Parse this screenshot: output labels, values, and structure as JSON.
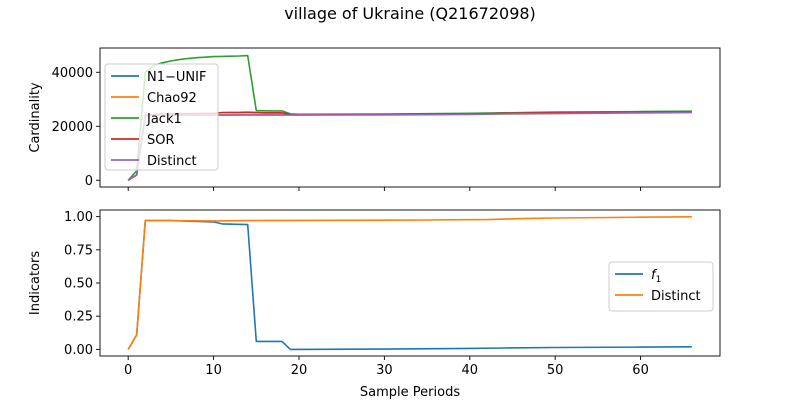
{
  "figure": {
    "title": "village of Ukraine (Q21672098)"
  },
  "chart_data": [
    {
      "type": "line",
      "panel": "top",
      "title": "village of Ukraine (Q21672098)",
      "xlabel": "",
      "ylabel": "Cardinality",
      "xlim": [
        -3.3,
        69.3
      ],
      "ylim": [
        -2500,
        49000
      ],
      "xticks": [
        0,
        10,
        20,
        30,
        40,
        50,
        60
      ],
      "yticks": [
        0,
        20000,
        40000
      ],
      "ytick_labels": [
        "0",
        "20000",
        "40000"
      ],
      "show_xtick_labels": false,
      "legend": "upper-left",
      "series": [
        {
          "name": "N1−UNIF",
          "color": "#1f77b4",
          "points": [
            [
              0,
              0
            ],
            [
              1,
              2000
            ],
            [
              2,
              24000
            ],
            [
              3,
              24150
            ],
            [
              5,
              24200
            ],
            [
              10,
              24250
            ],
            [
              14,
              24300
            ],
            [
              18,
              24300
            ],
            [
              19,
              24250
            ],
            [
              30,
              24350
            ],
            [
              40,
              24500
            ],
            [
              44,
              24800
            ],
            [
              50,
              25000
            ],
            [
              60,
              25150
            ],
            [
              66,
              25250
            ]
          ]
        },
        {
          "name": "Chao92",
          "color": "#ff7f0e",
          "points": [
            [
              0,
              0
            ],
            [
              1,
              2000
            ],
            [
              2,
              24000
            ],
            [
              3,
              24150
            ],
            [
              5,
              24250
            ],
            [
              10,
              24300
            ],
            [
              14,
              24350
            ],
            [
              18,
              24350
            ],
            [
              19,
              24300
            ],
            [
              30,
              24400
            ],
            [
              40,
              24600
            ],
            [
              44,
              24900
            ],
            [
              50,
              25100
            ],
            [
              60,
              25300
            ],
            [
              66,
              25450
            ]
          ]
        },
        {
          "name": "Jack1",
          "color": "#2ca02c",
          "points": [
            [
              0,
              0
            ],
            [
              1,
              3500
            ],
            [
              2,
              40000
            ],
            [
              3,
              42500
            ],
            [
              4,
              43500
            ],
            [
              5,
              44200
            ],
            [
              6,
              44700
            ],
            [
              7,
              45100
            ],
            [
              8,
              45400
            ],
            [
              9,
              45600
            ],
            [
              10,
              45800
            ],
            [
              11,
              45900
            ],
            [
              12,
              45950
            ],
            [
              13,
              46050
            ],
            [
              14,
              46200
            ],
            [
              15,
              25800
            ],
            [
              16,
              25750
            ],
            [
              17,
              25700
            ],
            [
              18,
              25700
            ],
            [
              19,
              24600
            ],
            [
              20,
              24450
            ],
            [
              30,
              24550
            ],
            [
              40,
              24800
            ],
            [
              44,
              25000
            ],
            [
              50,
              25250
            ],
            [
              60,
              25450
            ],
            [
              66,
              25600
            ]
          ]
        },
        {
          "name": "SOR",
          "color": "#d62728",
          "points": [
            [
              0,
              0
            ],
            [
              1,
              2000
            ],
            [
              2,
              24200
            ],
            [
              3,
              24400
            ],
            [
              5,
              24600
            ],
            [
              10,
              24800
            ],
            [
              11,
              25100
            ],
            [
              12,
              25150
            ],
            [
              13,
              25150
            ],
            [
              14,
              25200
            ],
            [
              15,
              25100
            ],
            [
              16,
              25000
            ],
            [
              17,
              25000
            ],
            [
              18,
              25000
            ],
            [
              19,
              24400
            ],
            [
              20,
              24350
            ],
            [
              30,
              24400
            ],
            [
              40,
              24550
            ],
            [
              44,
              24800
            ],
            [
              50,
              25000
            ],
            [
              60,
              25200
            ],
            [
              66,
              25300
            ]
          ]
        },
        {
          "name": "Distinct",
          "color": "#9467bd",
          "points": [
            [
              0,
              0
            ],
            [
              1,
              2000
            ],
            [
              2,
              23800
            ],
            [
              3,
              23950
            ],
            [
              5,
              24050
            ],
            [
              10,
              24100
            ],
            [
              14,
              24150
            ],
            [
              18,
              24150
            ],
            [
              19,
              24150
            ],
            [
              30,
              24200
            ],
            [
              40,
              24350
            ],
            [
              44,
              24550
            ],
            [
              50,
              24700
            ],
            [
              60,
              24950
            ],
            [
              66,
              25050
            ]
          ]
        }
      ]
    },
    {
      "type": "line",
      "panel": "bottom",
      "title": "",
      "xlabel": "Sample Periods",
      "ylabel": "Indicators",
      "xlim": [
        -3.3,
        69.3
      ],
      "ylim": [
        -0.05,
        1.05
      ],
      "xticks": [
        0,
        10,
        20,
        30,
        40,
        50,
        60
      ],
      "yticks": [
        0,
        0.25,
        0.5,
        0.75,
        1
      ],
      "ytick_labels": [
        "0.00",
        "0.25",
        "0.50",
        "0.75",
        "1.00"
      ],
      "show_xtick_labels": true,
      "legend": "center-right",
      "series": [
        {
          "name": "f1",
          "legend_main": "f",
          "legend_sub": "1",
          "color": "#1f77b4",
          "points": [
            [
              0,
              0.0
            ],
            [
              1,
              0.11
            ],
            [
              2,
              0.97
            ],
            [
              5,
              0.97
            ],
            [
              10,
              0.96
            ],
            [
              11,
              0.945
            ],
            [
              14,
              0.94
            ],
            [
              15,
              0.06
            ],
            [
              16,
              0.06
            ],
            [
              17,
              0.06
            ],
            [
              18,
              0.06
            ],
            [
              19,
              0.0
            ],
            [
              30,
              0.002
            ],
            [
              40,
              0.007
            ],
            [
              44,
              0.01
            ],
            [
              50,
              0.014
            ],
            [
              60,
              0.017
            ],
            [
              66,
              0.019
            ]
          ]
        },
        {
          "name": "Distinct",
          "color": "#ff7f0e",
          "points": [
            [
              0,
              0.0
            ],
            [
              1,
              0.11
            ],
            [
              2,
              0.97
            ],
            [
              10,
              0.968
            ],
            [
              15,
              0.97
            ],
            [
              20,
              0.972
            ],
            [
              30,
              0.973
            ],
            [
              35,
              0.975
            ],
            [
              42,
              0.978
            ],
            [
              46,
              0.985
            ],
            [
              50,
              0.99
            ],
            [
              60,
              0.996
            ],
            [
              66,
              0.999
            ]
          ]
        }
      ]
    }
  ]
}
